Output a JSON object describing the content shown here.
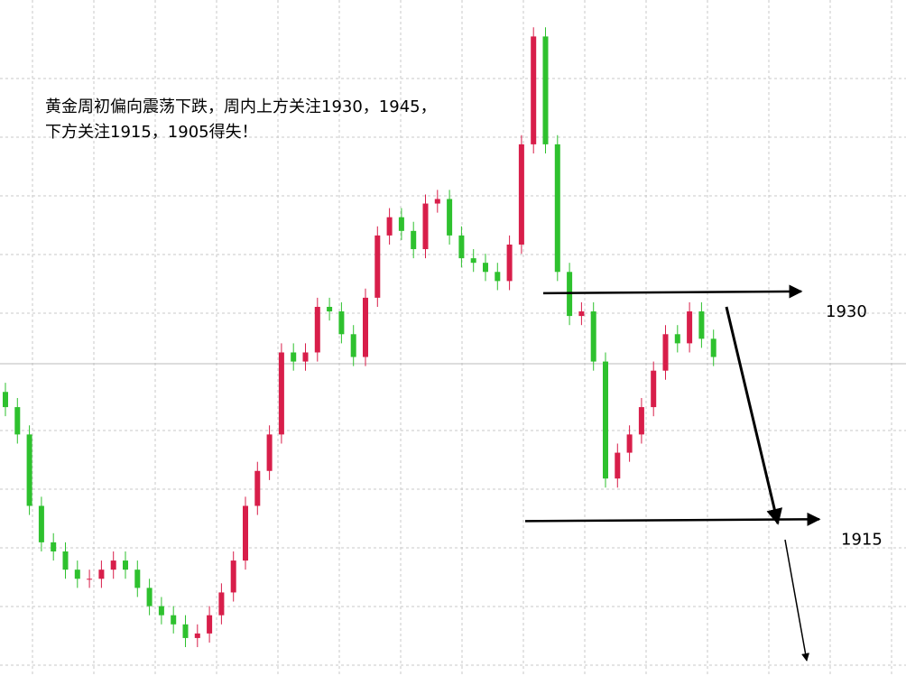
{
  "chart_data": {
    "type": "candlestick",
    "annotation_lines": [
      "黄金周初偏向震荡下跌，周内上方关注1930，1945，",
      "下方关注1915，1905得失！"
    ],
    "levels": [
      1930,
      1915
    ],
    "up_color": "#d81e4a",
    "down_color": "#2ec12e",
    "ylim": [
      1904.8,
      1949.3
    ],
    "open": [
      1923.5,
      1922.5,
      1920.7,
      1916.0,
      1913.6,
      1913.0,
      1911.8,
      1911.2,
      1911.2,
      1911.8,
      1912.4,
      1911.8,
      1910.6,
      1909.4,
      1908.8,
      1908.2,
      1907.3,
      1907.6,
      1908.8,
      1910.3,
      1912.4,
      1916.0,
      1918.3,
      1920.7,
      1926.1,
      1925.5,
      1926.1,
      1929.1,
      1928.8,
      1927.3,
      1925.8,
      1929.7,
      1933.8,
      1935.0,
      1934.1,
      1932.9,
      1935.9,
      1936.2,
      1933.8,
      1932.3,
      1932.0,
      1931.4,
      1930.8,
      1933.2,
      1939.8,
      1946.9,
      1939.8,
      1931.4,
      1928.5,
      1928.8,
      1925.5,
      1917.8,
      1919.5,
      1920.7,
      1922.5,
      1924.9,
      1927.3,
      1926.7,
      1928.8,
      1927.0
    ],
    "close": [
      1922.5,
      1920.7,
      1916.0,
      1913.6,
      1913.0,
      1911.8,
      1911.2,
      1911.2,
      1911.8,
      1912.4,
      1911.8,
      1910.6,
      1909.4,
      1908.8,
      1908.2,
      1907.3,
      1907.6,
      1908.8,
      1910.3,
      1912.4,
      1916.0,
      1918.3,
      1920.7,
      1926.1,
      1925.5,
      1926.1,
      1929.1,
      1928.8,
      1927.3,
      1925.8,
      1929.7,
      1933.8,
      1935.0,
      1934.1,
      1932.9,
      1935.9,
      1936.2,
      1933.8,
      1932.3,
      1932.0,
      1931.4,
      1930.8,
      1933.2,
      1939.8,
      1946.9,
      1939.8,
      1931.4,
      1928.5,
      1928.8,
      1925.5,
      1917.8,
      1919.5,
      1920.7,
      1922.5,
      1924.9,
      1927.3,
      1926.7,
      1928.8,
      1927.0,
      1925.8
    ],
    "high": [
      1924.1,
      1923.1,
      1921.3,
      1916.6,
      1914.2,
      1913.6,
      1912.4,
      1911.8,
      1912.4,
      1913.0,
      1913.0,
      1912.4,
      1911.2,
      1910.0,
      1909.4,
      1908.8,
      1908.2,
      1909.4,
      1910.9,
      1913.0,
      1916.6,
      1918.9,
      1921.3,
      1926.7,
      1926.7,
      1926.7,
      1929.7,
      1929.7,
      1929.4,
      1927.9,
      1930.3,
      1934.4,
      1935.6,
      1935.6,
      1934.7,
      1936.5,
      1936.8,
      1936.8,
      1934.4,
      1932.9,
      1932.6,
      1932.0,
      1933.8,
      1940.4,
      1947.5,
      1947.5,
      1940.4,
      1932.0,
      1929.4,
      1929.4,
      1926.1,
      1920.1,
      1921.3,
      1923.1,
      1925.5,
      1927.9,
      1927.9,
      1929.4,
      1929.4,
      1927.6
    ],
    "low": [
      1921.9,
      1920.1,
      1915.4,
      1913.0,
      1912.4,
      1911.2,
      1910.6,
      1910.6,
      1910.6,
      1911.2,
      1911.2,
      1910.0,
      1908.8,
      1908.2,
      1907.6,
      1906.7,
      1906.7,
      1907.0,
      1908.2,
      1909.7,
      1911.8,
      1915.4,
      1917.7,
      1920.1,
      1924.9,
      1924.9,
      1925.5,
      1928.2,
      1926.7,
      1925.2,
      1925.2,
      1929.1,
      1933.2,
      1933.5,
      1932.3,
      1932.3,
      1935.3,
      1933.2,
      1931.7,
      1931.4,
      1930.8,
      1930.2,
      1930.2,
      1932.6,
      1939.2,
      1939.2,
      1930.8,
      1927.9,
      1927.9,
      1924.9,
      1917.2,
      1917.2,
      1918.9,
      1920.1,
      1921.9,
      1924.3,
      1926.1,
      1926.1,
      1926.4,
      1925.2
    ]
  }
}
